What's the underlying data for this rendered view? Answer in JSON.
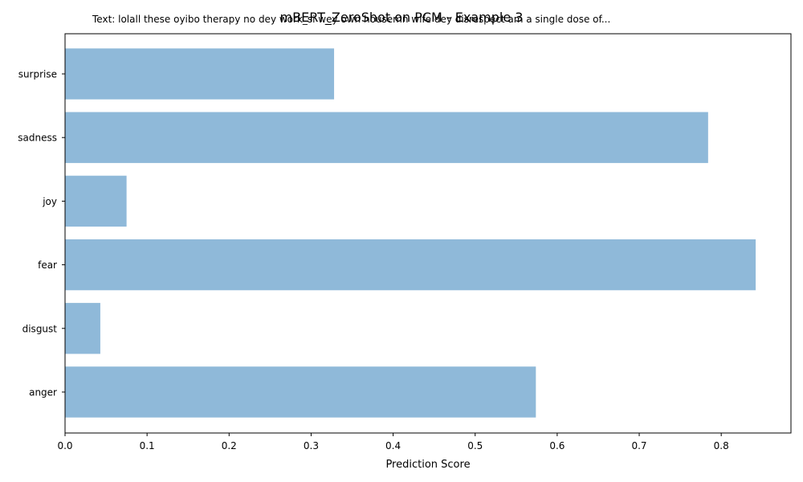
{
  "chart_data": {
    "type": "bar",
    "orientation": "horizontal",
    "title": "mBERT_ZeroShot on PCM - Example 3",
    "subtitle": "Text: lolall these oyibo therapy no dey work_si wey own housemn wife dey disrespect am a single dose of...",
    "xlabel": "Prediction Score",
    "ylabel": "",
    "categories": [
      "surprise",
      "sadness",
      "joy",
      "fear",
      "disgust",
      "anger"
    ],
    "values": [
      0.328,
      0.784,
      0.075,
      0.842,
      0.043,
      0.574
    ],
    "xlim": [
      0,
      0.885
    ],
    "xticks": [
      "0.0",
      "0.1",
      "0.2",
      "0.3",
      "0.4",
      "0.5",
      "0.6",
      "0.7",
      "0.8"
    ],
    "bar_color": "#8fb9d9",
    "grid": false,
    "legend": "none"
  }
}
